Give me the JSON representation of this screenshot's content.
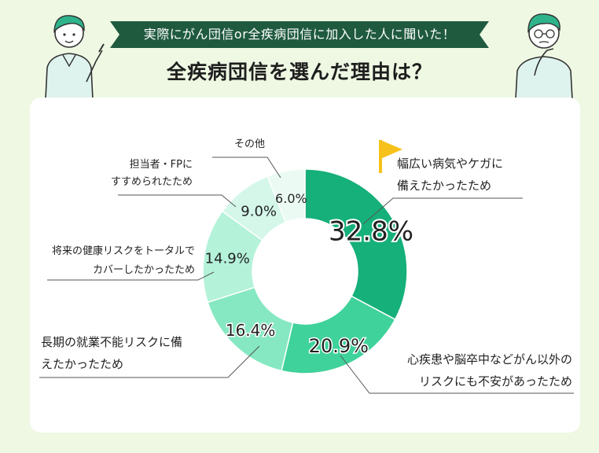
{
  "header": {
    "banner_text": "実際にがん団信or全疾病団信に加入した人に聞いた！",
    "title": "全疾病団信を選んだ理由は？"
  },
  "colors": {
    "background": "#eef8e3",
    "banner": "#1f5a3f",
    "flag": "#f6c21a",
    "slices": [
      "#16b07a",
      "#3fd29a",
      "#86e8c2",
      "#b4f2da",
      "#d4f7ea",
      "#ebfbf4"
    ]
  },
  "chart_data": {
    "type": "pie",
    "subtype": "donut",
    "categories": [
      "幅広い病気やケガに備えたかったため",
      "心疾患や脳卒中などがん以外のリスクにも不安があったため",
      "長期の就業不能リスクに備えたかったため",
      "将来の健康リスクをトータルでカバーしたかったため",
      "担当者・FPにすすめられたため",
      "その他"
    ],
    "label_lines": [
      [
        "幅広い病気やケガに",
        "備えたかったため"
      ],
      [
        "心疾患や脳卒中などがん以外の",
        "リスクにも不安があったため"
      ],
      [
        "長期の就業不能リスクに備",
        "えたかったため"
      ],
      [
        "将来の健康リスクをトータルで",
        "カバーしたかったため"
      ],
      [
        "担当者・FPに",
        "すすめられたため"
      ],
      [
        "その他"
      ]
    ],
    "values": [
      32.8,
      20.9,
      16.4,
      14.9,
      9.0,
      6.0
    ],
    "value_labels": [
      "32.8%",
      "20.9%",
      "16.4%",
      "14.9%",
      "9.0%",
      "6.0%"
    ],
    "highlight_icon": "flag-icon"
  }
}
